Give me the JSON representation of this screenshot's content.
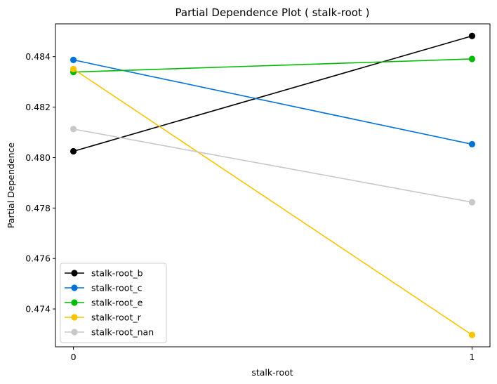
{
  "chart_data": {
    "type": "line",
    "title": "Partial Dependence Plot ( stalk-root )",
    "xlabel": "stalk-root",
    "ylabel": "Partial Dependence",
    "x": [
      0,
      1
    ],
    "x_tick_labels": [
      "0",
      "1"
    ],
    "xlim": [
      -0.045,
      1.045
    ],
    "ylim": [
      0.4725,
      0.4853
    ],
    "y_ticks": [
      0.474,
      0.476,
      0.478,
      0.48,
      0.482,
      0.484
    ],
    "y_tick_labels": [
      "0.474",
      "0.476",
      "0.478",
      "0.480",
      "0.482",
      "0.484"
    ],
    "grid": false,
    "legend_position": "lower-left",
    "series": [
      {
        "name": "stalk-root_b",
        "color": "#000000",
        "values": [
          0.48025,
          0.48482
        ]
      },
      {
        "name": "stalk-root_c",
        "color": "#0072d6",
        "values": [
          0.48387,
          0.48053
        ]
      },
      {
        "name": "stalk-root_e",
        "color": "#00bb00",
        "values": [
          0.48339,
          0.48391
        ]
      },
      {
        "name": "stalk-root_r",
        "color": "#f8c400",
        "values": [
          0.48351,
          0.47297
        ]
      },
      {
        "name": "stalk-root_nan",
        "color": "#c8c8c8",
        "values": [
          0.48113,
          0.47823
        ]
      }
    ]
  }
}
